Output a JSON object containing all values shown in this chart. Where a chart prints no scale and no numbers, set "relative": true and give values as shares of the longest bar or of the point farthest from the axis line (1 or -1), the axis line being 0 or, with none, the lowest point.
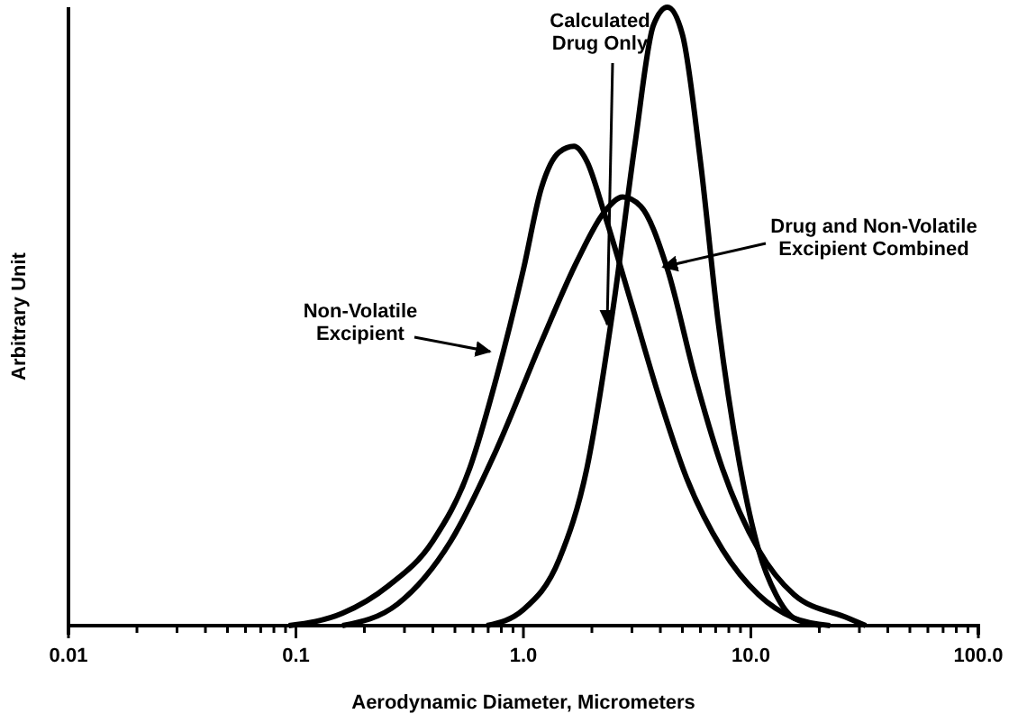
{
  "chart_data": {
    "type": "line",
    "relative": true,
    "log": "x",
    "xlabel": "Aerodynamic Diameter, Micrometers",
    "ylabel": "Arbitrary Unit",
    "xlim": [
      0.01,
      100
    ],
    "xticks": [
      {
        "value": 0.01,
        "label": "0.01"
      },
      {
        "value": 0.02,
        "label": null
      },
      {
        "value": 0.03,
        "label": null
      },
      {
        "value": 0.04,
        "label": null
      },
      {
        "value": 0.05,
        "label": null
      },
      {
        "value": 0.06,
        "label": null
      },
      {
        "value": 0.07,
        "label": null
      },
      {
        "value": 0.08,
        "label": null
      },
      {
        "value": 0.09,
        "label": null
      },
      {
        "value": 0.1,
        "label": "0.1"
      },
      {
        "value": 0.2,
        "label": null
      },
      {
        "value": 0.3,
        "label": null
      },
      {
        "value": 0.4,
        "label": null
      },
      {
        "value": 0.5,
        "label": null
      },
      {
        "value": 0.6,
        "label": null
      },
      {
        "value": 0.7,
        "label": null
      },
      {
        "value": 0.8,
        "label": null
      },
      {
        "value": 0.9,
        "label": null
      },
      {
        "value": 1,
        "label": "1.0"
      },
      {
        "value": 2,
        "label": null
      },
      {
        "value": 3,
        "label": null
      },
      {
        "value": 4,
        "label": null
      },
      {
        "value": 5,
        "label": null
      },
      {
        "value": 6,
        "label": null
      },
      {
        "value": 7,
        "label": null
      },
      {
        "value": 8,
        "label": null
      },
      {
        "value": 9,
        "label": null
      },
      {
        "value": 10,
        "label": "10.0"
      },
      {
        "value": 20,
        "label": null
      },
      {
        "value": 30,
        "label": null
      },
      {
        "value": 40,
        "label": null
      },
      {
        "value": 50,
        "label": null
      },
      {
        "value": 60,
        "label": null
      },
      {
        "value": 70,
        "label": null
      },
      {
        "value": 80,
        "label": null
      },
      {
        "value": 90,
        "label": null
      },
      {
        "value": 100,
        "label": "100.0"
      }
    ],
    "marker": "none",
    "line_style": "solid",
    "grid": false,
    "series": [
      {
        "color": "#000000",
        "x": [
          0.093,
          0.16,
          0.254,
          0.4,
          0.58,
          0.76,
          1.0,
          1.2,
          1.44,
          1.67,
          1.9,
          2.28,
          3.0,
          3.94,
          5.2,
          7.5,
          10.8,
          15.5,
          22.3
        ],
        "values": [
          0,
          0.02,
          0.064,
          0.137,
          0.254,
          0.4,
          0.576,
          0.708,
          0.766,
          0.775,
          0.751,
          0.664,
          0.518,
          0.371,
          0.24,
          0.123,
          0.05,
          0.012,
          0
        ]
      },
      {
        "color": "#000000",
        "x": [
          0.69,
          1.0,
          1.44,
          1.9,
          2.49,
          3.1,
          3.73,
          4.3,
          5.0,
          6.0,
          7.2,
          9.0,
          10.8,
          12.9,
          15.5,
          20.4
        ],
        "values": [
          0,
          0.026,
          0.108,
          0.254,
          0.518,
          0.781,
          0.971,
          1,
          0.956,
          0.751,
          0.488,
          0.254,
          0.123,
          0.05,
          0.012,
          0
        ]
      },
      {
        "color": "#000000",
        "x": [
          0.16,
          0.28,
          0.48,
          0.76,
          1.2,
          1.73,
          2.28,
          2.73,
          3.28,
          4.3,
          5.7,
          7.5,
          10.8,
          15.5,
          26.8,
          32
        ],
        "values": [
          0,
          0.035,
          0.137,
          0.284,
          0.459,
          0.591,
          0.67,
          0.693,
          0.678,
          0.576,
          0.4,
          0.254,
          0.123,
          0.05,
          0.012,
          0
        ]
      }
    ],
    "annotations": [
      "Non-Volatile\nExcipient",
      "Calculated\nDrug Only",
      "Drug and Non-Volatile\nExcipient Combined"
    ]
  }
}
